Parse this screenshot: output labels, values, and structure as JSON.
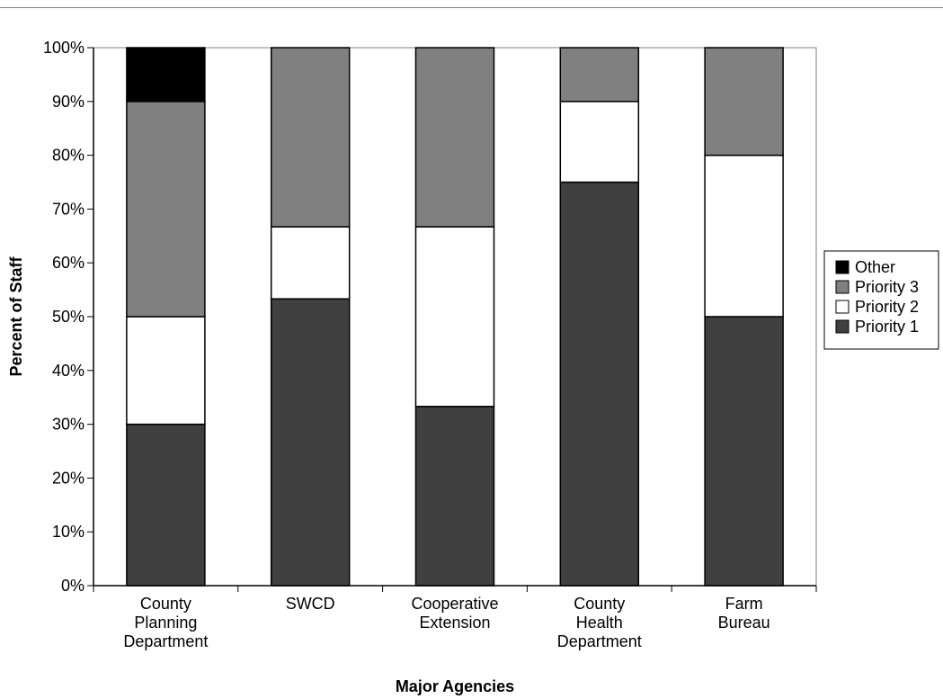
{
  "chart_data": {
    "type": "bar",
    "stacked": true,
    "percent_stacked": true,
    "categories": [
      [
        "County",
        "Planning",
        "Department"
      ],
      [
        "SWCD"
      ],
      [
        "Cooperative",
        "Extension"
      ],
      [
        "County",
        "Health",
        "Department"
      ],
      [
        "Farm",
        "Bureau"
      ]
    ],
    "series": [
      {
        "name": "Priority 1",
        "color": "#404040",
        "values": [
          30,
          53.3,
          33.3,
          75,
          50
        ]
      },
      {
        "name": "Priority 2",
        "color": "#ffffff",
        "values": [
          20,
          13.4,
          33.4,
          15,
          30
        ]
      },
      {
        "name": "Priority 3",
        "color": "#808080",
        "values": [
          40,
          33.3,
          33.3,
          10,
          20
        ]
      },
      {
        "name": "Other",
        "color": "#000000",
        "values": [
          10,
          0,
          0,
          0,
          0
        ]
      }
    ],
    "legend_order": [
      "Other",
      "Priority 3",
      "Priority 2",
      "Priority 1"
    ],
    "legend_position": "right",
    "title": "",
    "xlabel": "Major Agencies",
    "ylabel": "Percent of Staff",
    "ylim": [
      0,
      100
    ],
    "yticks": [
      "0%",
      "10%",
      "20%",
      "30%",
      "40%",
      "50%",
      "60%",
      "70%",
      "80%",
      "90%",
      "100%"
    ],
    "grid": false
  }
}
